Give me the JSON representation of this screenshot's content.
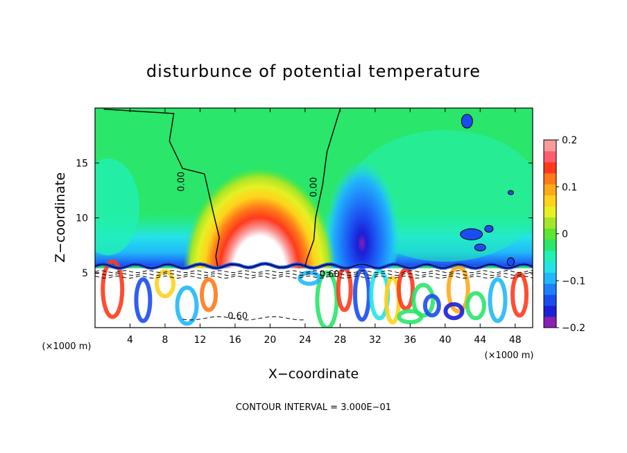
{
  "chart_data": {
    "type": "heatmap",
    "title": "disturbunce of potential temperature",
    "xlabel": "X−coordinate",
    "ylabel": "Z−coordinate",
    "x_unit": "(×1000 m)",
    "y_unit": "(×1000 m)",
    "xlim": [
      0,
      50
    ],
    "ylim": [
      0,
      20
    ],
    "x_ticks": [
      "4",
      "8",
      "12",
      "16",
      "20",
      "24",
      "28",
      "32",
      "36",
      "40",
      "44",
      "48"
    ],
    "y_ticks": [
      "5",
      "10",
      "15"
    ],
    "colorbar": {
      "min": -0.2,
      "max": 0.2,
      "tick_labels": [
        "0.2",
        "0.1",
        "0",
        "−0.1",
        "−0.2"
      ],
      "colors": [
        "#8b1fb4",
        "#1a1fd6",
        "#1b4cf0",
        "#1e80fa",
        "#21b8fa",
        "#24e3e6",
        "#22f0b4",
        "#2ae66a",
        "#5ce632",
        "#a5e628",
        "#e6f023",
        "#ffd21c",
        "#ffaa1a",
        "#ff7a19",
        "#ff3a1c",
        "#ff5c70",
        "#f99a9a"
      ]
    },
    "contour_labels": [
      "0.00",
      "0.00",
      "0.60",
      "0.60"
    ],
    "contour_interval_text": "CONTOUR INTERVAL = 3.000E−01",
    "legend": "right",
    "grid": false
  }
}
